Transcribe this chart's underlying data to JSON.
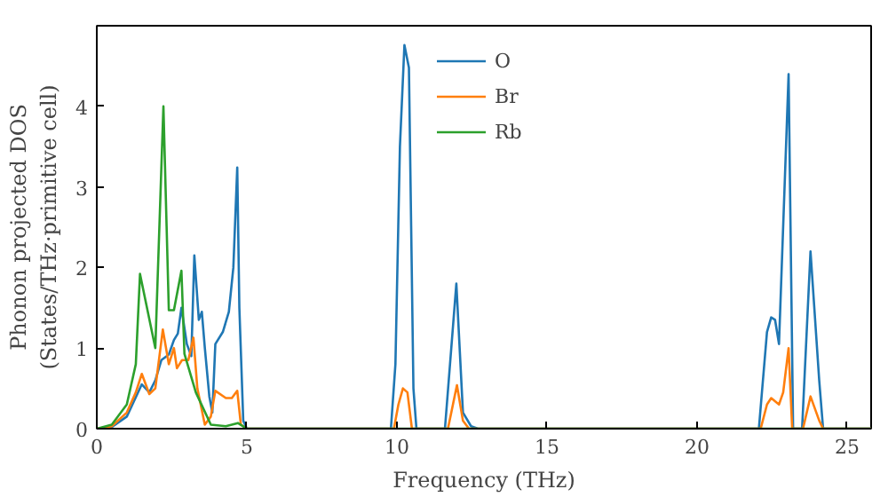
{
  "chart_data": {
    "type": "line",
    "xlabel": "Frequency (THz)",
    "ylabel": "Phonon projected DOS\n(States/THz·primitive cell)",
    "xlim": [
      0,
      25.8
    ],
    "ylim": [
      0,
      5
    ],
    "xticks": [
      0,
      5,
      10,
      15,
      20,
      25
    ],
    "yticks": [
      0,
      1,
      2,
      3,
      4
    ],
    "grid": false,
    "legend": "top",
    "marker": "none",
    "line_style": "solid",
    "series": [
      {
        "name": "O",
        "color": "#1f77b4",
        "x": [
          0,
          0.5,
          1.0,
          1.5,
          1.75,
          1.95,
          2.15,
          2.4,
          2.57,
          2.7,
          2.82,
          3.0,
          3.15,
          3.25,
          3.4,
          3.5,
          3.6,
          3.75,
          3.85,
          3.95,
          4.2,
          4.4,
          4.55,
          4.68,
          4.75,
          4.88,
          5.0,
          9.8,
          9.95,
          10.1,
          10.25,
          10.4,
          10.55,
          10.65,
          11.6,
          11.98,
          12.2,
          12.47,
          12.7,
          22.06,
          22.33,
          22.47,
          22.6,
          22.73,
          23.05,
          23.2,
          23.5,
          23.78,
          24.07,
          24.2,
          25.8
        ],
        "values": [
          0,
          0.02,
          0.15,
          0.55,
          0.45,
          0.6,
          0.85,
          0.92,
          1.1,
          1.18,
          1.5,
          1.05,
          0.9,
          2.15,
          1.35,
          1.45,
          1.0,
          0.4,
          0.2,
          1.05,
          1.2,
          1.45,
          2.0,
          3.24,
          1.5,
          0.1,
          0,
          0,
          0.8,
          3.5,
          4.76,
          4.48,
          0.5,
          0,
          0,
          1.8,
          0.2,
          0.03,
          0,
          0,
          1.2,
          1.38,
          1.35,
          1.05,
          4.4,
          0,
          0,
          2.2,
          0.6,
          0,
          0
        ]
      },
      {
        "name": "Br",
        "color": "#ff7f0e",
        "x": [
          0,
          0.5,
          1.0,
          1.3,
          1.5,
          1.75,
          1.95,
          2.2,
          2.4,
          2.57,
          2.67,
          2.84,
          3.05,
          3.22,
          3.35,
          3.6,
          3.8,
          3.95,
          4.3,
          4.5,
          4.68,
          4.8,
          5.0,
          9.9,
          10.05,
          10.2,
          10.35,
          10.5,
          11.7,
          12.0,
          12.2,
          12.4,
          22.12,
          22.33,
          22.47,
          22.73,
          22.87,
          23.05,
          23.17,
          23.53,
          23.78,
          24.07,
          24.2,
          25.8
        ],
        "values": [
          0,
          0.03,
          0.2,
          0.45,
          0.68,
          0.43,
          0.5,
          1.23,
          0.8,
          1.0,
          0.75,
          0.85,
          0.85,
          1.13,
          0.5,
          0.05,
          0.15,
          0.47,
          0.38,
          0.38,
          0.47,
          0.05,
          0,
          0,
          0.3,
          0.5,
          0.45,
          0,
          0,
          0.54,
          0.1,
          0,
          0,
          0.3,
          0.38,
          0.3,
          0.45,
          1.0,
          0,
          0,
          0.4,
          0.1,
          0,
          0
        ]
      },
      {
        "name": "Rb",
        "color": "#2ca02c",
        "x": [
          0,
          0.5,
          1.0,
          1.3,
          1.44,
          1.95,
          2.22,
          2.4,
          2.57,
          2.82,
          2.92,
          3.3,
          3.8,
          4.3,
          4.7,
          5.0,
          25.8
        ],
        "values": [
          0,
          0.05,
          0.3,
          0.8,
          1.92,
          1.0,
          4.0,
          1.47,
          1.47,
          1.96,
          0.93,
          0.45,
          0.05,
          0.03,
          0.07,
          0,
          0
        ]
      }
    ]
  }
}
